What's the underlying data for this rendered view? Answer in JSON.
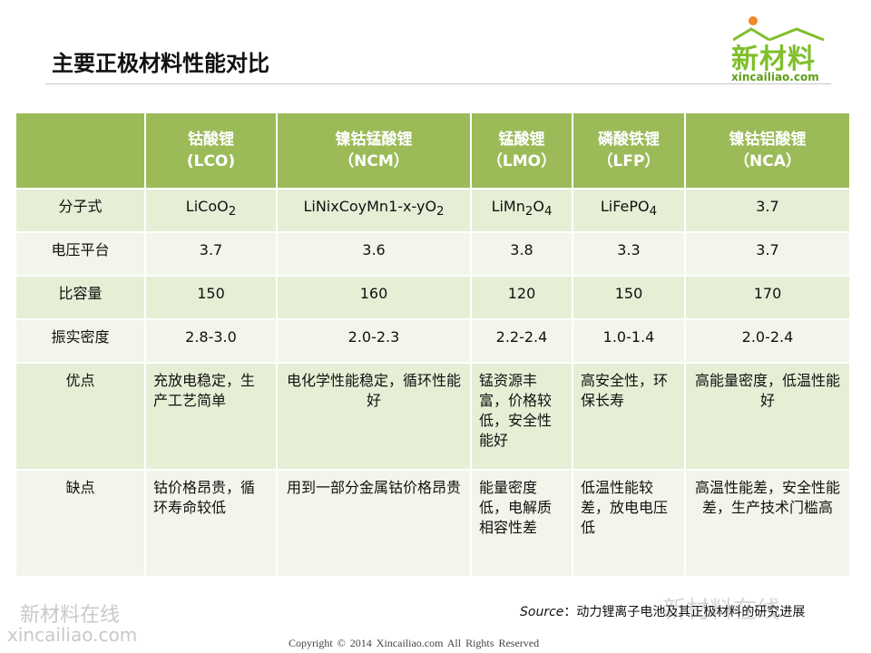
{
  "title": "主要正极材料性能对比",
  "logo": {
    "main": "新材料",
    "domain": "xincailiao.com"
  },
  "table": {
    "columns": [
      {
        "line1": "",
        "line2": ""
      },
      {
        "line1": "钴酸锂",
        "line2": "(LCO)"
      },
      {
        "line1": "镍钴锰酸锂",
        "line2": "（NCM）"
      },
      {
        "line1": "锰酸锂",
        "line2": "（LMO）"
      },
      {
        "line1": "磷酸铁锂",
        "line2": "（LFP）"
      },
      {
        "line1": "镍钴铝酸锂",
        "line2": "（NCA）"
      }
    ],
    "formula_row": {
      "label": "分子式",
      "lco": {
        "a": "LiCoO",
        "sub": "2",
        "b": ""
      },
      "ncm": {
        "a": "LiNixCoyMn1-x-yO",
        "sub": "2",
        "b": ""
      },
      "lmo": {
        "a": "LiMn",
        "sub": "2",
        "b": "O",
        "sub2": "4"
      },
      "lfp": {
        "a": "LiFePO",
        "sub": "4",
        "b": ""
      },
      "nca": "3.7"
    },
    "rows": [
      {
        "label": "电压平台",
        "cells": [
          "3.7",
          "3.6",
          "3.8",
          "3.3",
          "3.7"
        ]
      },
      {
        "label": "比容量",
        "cells": [
          "150",
          "160",
          "120",
          "150",
          "170"
        ]
      },
      {
        "label": "振实密度",
        "cells": [
          "2.8-3.0",
          "2.0-2.3",
          "2.2-2.4",
          "1.0-1.4",
          "2.0-2.4"
        ]
      }
    ],
    "pros": {
      "label": "优点",
      "cells": [
        "充放电稳定，生产工艺简单",
        "电化学性能稳定，循环性能好",
        "锰资源丰富，价格较低，安全性能好",
        "高安全性，环保长寿",
        "高能量密度，低温性能好"
      ]
    },
    "cons": {
      "label": "缺点",
      "cells": [
        "钴价格昂贵，循环寿命较低",
        "用到一部分金属钴价格昂贵",
        "能量密度低，电解质相容性差",
        "低温性能较差，放电电压低",
        "高温性能差，安全性能差，生产技术门槛高"
      ]
    }
  },
  "source": {
    "prefix": "Source",
    "text": "：动力锂离子电池及其正极材料的研究进展"
  },
  "footer": "Copyright © 2014   Xincailiao.com   All Rights Reserved",
  "watermarks": {
    "cn": "新材料在线",
    "en": "xincailiao.com",
    "wechat": "新材料在线"
  }
}
